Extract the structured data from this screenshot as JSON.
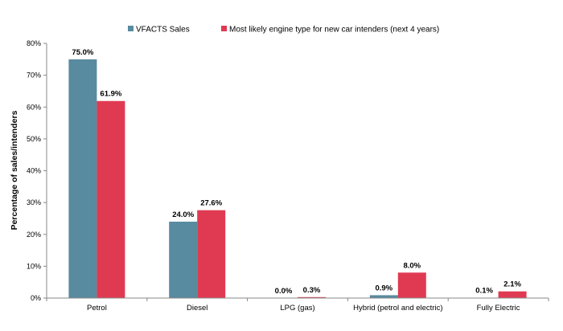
{
  "chart_data": {
    "type": "bar",
    "title": "",
    "xlabel": "",
    "ylabel": "Percentage of sales/intenders",
    "ylim": [
      0,
      80
    ],
    "yticks": [
      "0%",
      "10%",
      "20%",
      "30%",
      "40%",
      "50%",
      "60%",
      "70%",
      "80%"
    ],
    "grid": false,
    "legend_position": "top",
    "categories": [
      "Petrol",
      "Diesel",
      "LPG (gas)",
      "Hybrid (petrol and electric)",
      "Fully Electric"
    ],
    "series": [
      {
        "name": "VFACTS Sales",
        "color": "#588aa0",
        "values": [
          75.0,
          24.0,
          0.0,
          0.9,
          0.1
        ],
        "labels": [
          "75.0%",
          "24.0%",
          "0.0%",
          "0.9%",
          "0.1%"
        ]
      },
      {
        "name": "Most likely engine type for new car intenders (next 4 years)",
        "color": "#e03a52",
        "values": [
          61.9,
          27.6,
          0.3,
          8.0,
          2.1
        ],
        "labels": [
          "61.9%",
          "27.6%",
          "0.3%",
          "8.0%",
          "2.1%"
        ]
      }
    ]
  }
}
